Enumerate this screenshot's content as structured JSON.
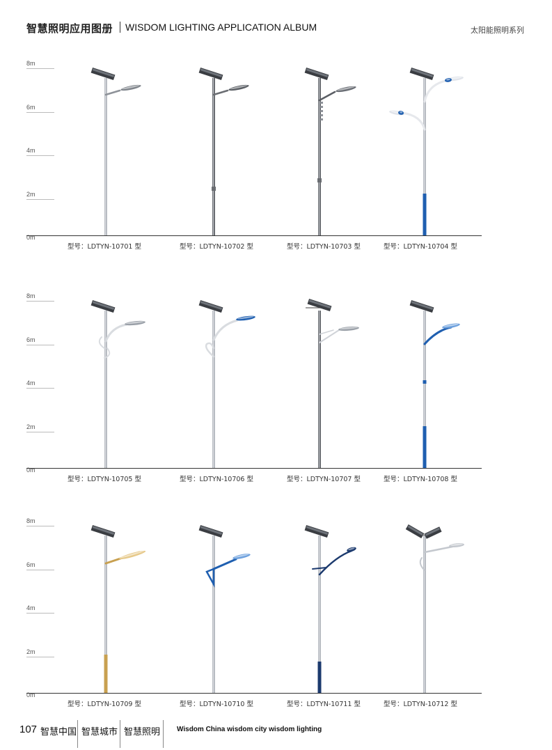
{
  "header": {
    "title_cn": "智慧照明应用图册",
    "title_en": "WISDOM LIGHTING APPLICATION ALBUM",
    "series": "太阳能照明系列"
  },
  "axis": {
    "ticks": [
      "8m",
      "6m",
      "4m",
      "2m",
      "0m"
    ]
  },
  "colors": {
    "pole_gray": "#b8bcc2",
    "pole_dark": "#6a6d72",
    "blue": "#1f5fb0",
    "navy": "#1c3a6e",
    "gold": "#c8a050",
    "panel": "#3a3d42"
  },
  "rows": [
    {
      "models": [
        {
          "label": "型号：LDTYN-10701 型",
          "variant": "single-arm",
          "base": "gray"
        },
        {
          "label": "型号：LDTYN-10702 型",
          "variant": "single-arm-dark",
          "base": "dark"
        },
        {
          "label": "型号：LDTYN-10703 型",
          "variant": "single-arm-deco",
          "base": "dark"
        },
        {
          "label": "型号：LDTYN-10704 型",
          "variant": "double-arm",
          "base": "blue"
        }
      ]
    },
    {
      "models": [
        {
          "label": "型号：LDTYN-10705 型",
          "variant": "scroll-arm",
          "base": "gray"
        },
        {
          "label": "型号：LDTYN-10706 型",
          "variant": "heart-arm",
          "base": "gray"
        },
        {
          "label": "型号：LDTYN-10707 型",
          "variant": "tilt-panel",
          "base": "dark"
        },
        {
          "label": "型号：LDTYN-10708 型",
          "variant": "blue-arm",
          "base": "blue"
        }
      ]
    },
    {
      "models": [
        {
          "label": "型号：LDTYN-10709 型",
          "variant": "gold-arm",
          "base": "gold"
        },
        {
          "label": "型号：LDTYN-10710 型",
          "variant": "triangle-arm",
          "base": "gray"
        },
        {
          "label": "型号：LDTYN-10711 型",
          "variant": "navy-arm",
          "base": "navy"
        },
        {
          "label": "型号：LDTYN-10712 型",
          "variant": "double-panel",
          "base": "gray"
        }
      ]
    }
  ],
  "footer": {
    "page_number": "107",
    "items": [
      "智慧中国",
      "智慧城市",
      "智慧照明"
    ],
    "tagline": "Wisdom China  wisdom city  wisdom lighting"
  }
}
